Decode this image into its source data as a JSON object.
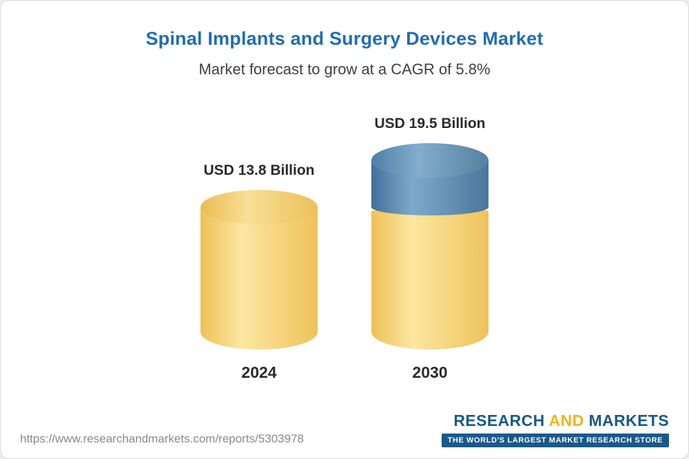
{
  "header": {
    "title": "Spinal Implants and Surgery Devices Market",
    "subtitle": "Market forecast to grow at a CAGR of 5.8%"
  },
  "chart_data": {
    "type": "bar",
    "categories": [
      "2024",
      "2030"
    ],
    "values": [
      13.8,
      19.5
    ],
    "value_labels": [
      "USD 13.8 Billion",
      "USD 19.5 Billion"
    ],
    "unit": "USD Billion",
    "title": "Spinal Implants and Surgery Devices Market",
    "subtitle": "Market forecast to grow at a CAGR of 5.8%",
    "cagr_percent": 5.8,
    "bar_style": "3d-cylinder",
    "colors": {
      "base_value": "#f3cd6b",
      "growth_segment": "#5e8db4"
    },
    "legend_position": "none",
    "grid": false
  },
  "bars": [
    {
      "label": "USD 13.8 Billion",
      "year": "2024"
    },
    {
      "label": "USD 19.5 Billion",
      "year": "2030"
    }
  ],
  "footer": {
    "url": "https://www.researchandmarkets.com/reports/5303978",
    "logo_research": "RESEARCH",
    "logo_and": "AND",
    "logo_markets": "MARKETS",
    "tagline": "THE WORLD'S LARGEST MARKET RESEARCH STORE"
  }
}
